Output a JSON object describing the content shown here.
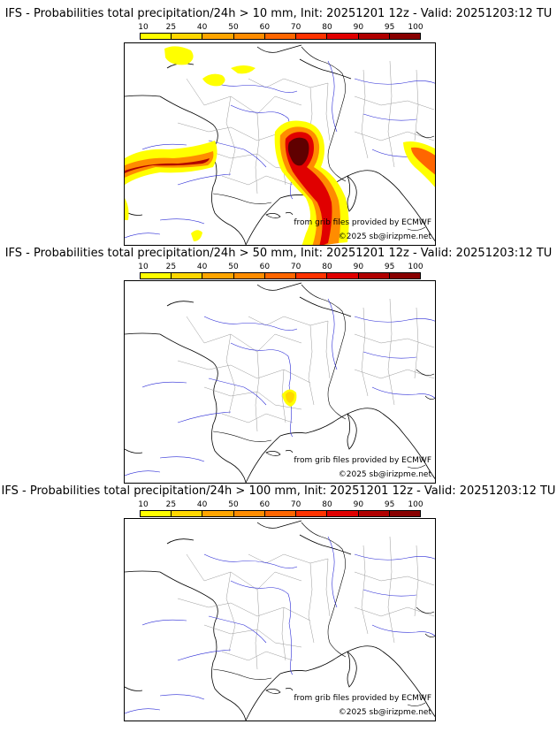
{
  "colorbar": {
    "labels": [
      "10",
      "25",
      "40",
      "50",
      "60",
      "70",
      "80",
      "90",
      "95",
      "100"
    ],
    "colors": [
      "#ffff00",
      "#ffd700",
      "#ffa500",
      "#ff8c00",
      "#ff6600",
      "#ff3300",
      "#e00000",
      "#b00000",
      "#880000",
      "#600000"
    ]
  },
  "panels": [
    {
      "title": "IFS - Probabilities total precipitation/24h > 10 mm, Init: 20251201 12z - Valid: 20251203:12 TU",
      "source_credit": "from grib files provided by ECMWF",
      "copyright": "©2025 sb@irizpme.net"
    },
    {
      "title": "IFS - Probabilities total precipitation/24h > 50 mm, Init: 20251201 12z - Valid: 20251203:12 TU",
      "source_credit": "from grib files provided by ECMWF",
      "copyright": "©2025 sb@irizpme.net"
    },
    {
      "title": "IFS - Probabilities total precipitation/24h > 100 mm, Init: 20251201 12z - Valid: 20251203:12 TU",
      "source_credit": "from grib files provided by ECMWF",
      "copyright": "©2025 sb@irizpme.net"
    }
  ]
}
